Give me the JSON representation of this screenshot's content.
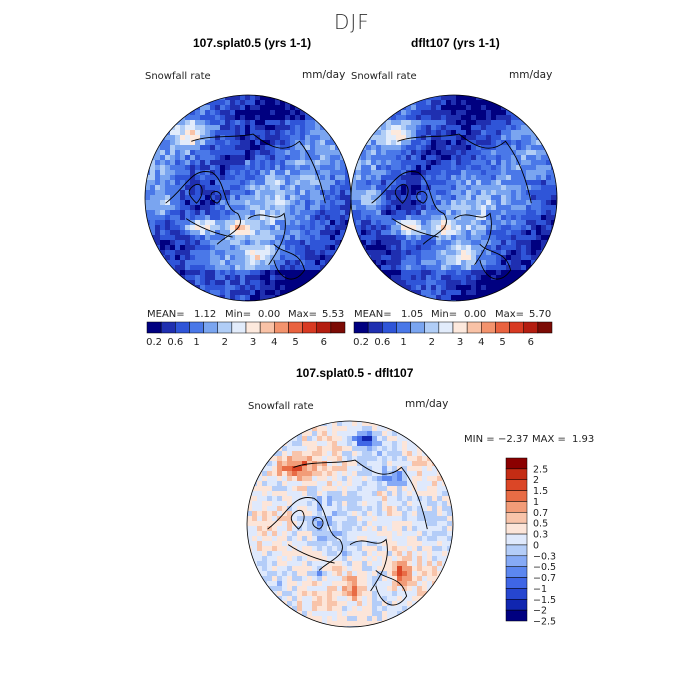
{
  "page": {
    "title": "DJF"
  },
  "colors": {
    "abs_scale": [
      "#000080",
      "#1f2fb0",
      "#2f55d8",
      "#4a78e8",
      "#7aa5f0",
      "#b0cdf6",
      "#e2ecfb",
      "#fde9dd",
      "#f9c2a6",
      "#f3936d",
      "#e96340",
      "#d83a22",
      "#b41d10",
      "#7c0b05"
    ],
    "diff_scale": [
      "#000080",
      "#1026b0",
      "#2646d0",
      "#3f66e6",
      "#5c87f0",
      "#86aaf6",
      "#b4cdf8",
      "#dfe9fc",
      "#fce5d9",
      "#f8c4aa",
      "#f29c78",
      "#e86c45",
      "#db4626",
      "#c42c14",
      "#8b0000"
    ],
    "map_outline": "#000000",
    "coast": "#000000"
  },
  "chart_data": [
    {
      "type": "heatmap",
      "projection": "north-polar-stereographic",
      "title": "107.splat0.5 (yrs 1-1)",
      "variable_label": "Snowfall rate",
      "units": "mm/day",
      "stats": {
        "mean_label": "MEAN=",
        "mean": "1.12",
        "min_label": "Min=",
        "min": "0.00",
        "max_label": "Max=",
        "max": "5.53"
      },
      "colorbar": {
        "orientation": "horizontal",
        "tick_labels": [
          "0.2",
          "0.6",
          "1",
          "2",
          "3",
          "4",
          "5",
          "6"
        ]
      }
    },
    {
      "type": "heatmap",
      "projection": "north-polar-stereographic",
      "title": "dflt107 (yrs 1-1)",
      "variable_label": "Snowfall rate",
      "units": "mm/day",
      "stats": {
        "mean_label": "MEAN=",
        "mean": "1.05",
        "min_label": "Min=",
        "min": "0.00",
        "max_label": "Max=",
        "max": "5.70"
      },
      "colorbar": {
        "orientation": "horizontal",
        "tick_labels": [
          "0.2",
          "0.6",
          "1",
          "2",
          "3",
          "4",
          "5",
          "6"
        ]
      }
    },
    {
      "type": "heatmap",
      "projection": "north-polar-stereographic",
      "title": "107.splat0.5 - dflt107",
      "variable_label": "Snowfall rate",
      "units": "mm/day",
      "stats": {
        "min_label": "MIN =",
        "min": "−2.37",
        "max_label": "MAX =",
        "max": "1.93"
      },
      "colorbar": {
        "orientation": "vertical",
        "tick_labels": [
          "2.5",
          "2",
          "1.5",
          "1",
          "0.7",
          "0.5",
          "0.3",
          "0",
          "−0.3",
          "−0.5",
          "−0.7",
          "−1",
          "−1.5",
          "−2",
          "−2.5"
        ]
      }
    }
  ]
}
